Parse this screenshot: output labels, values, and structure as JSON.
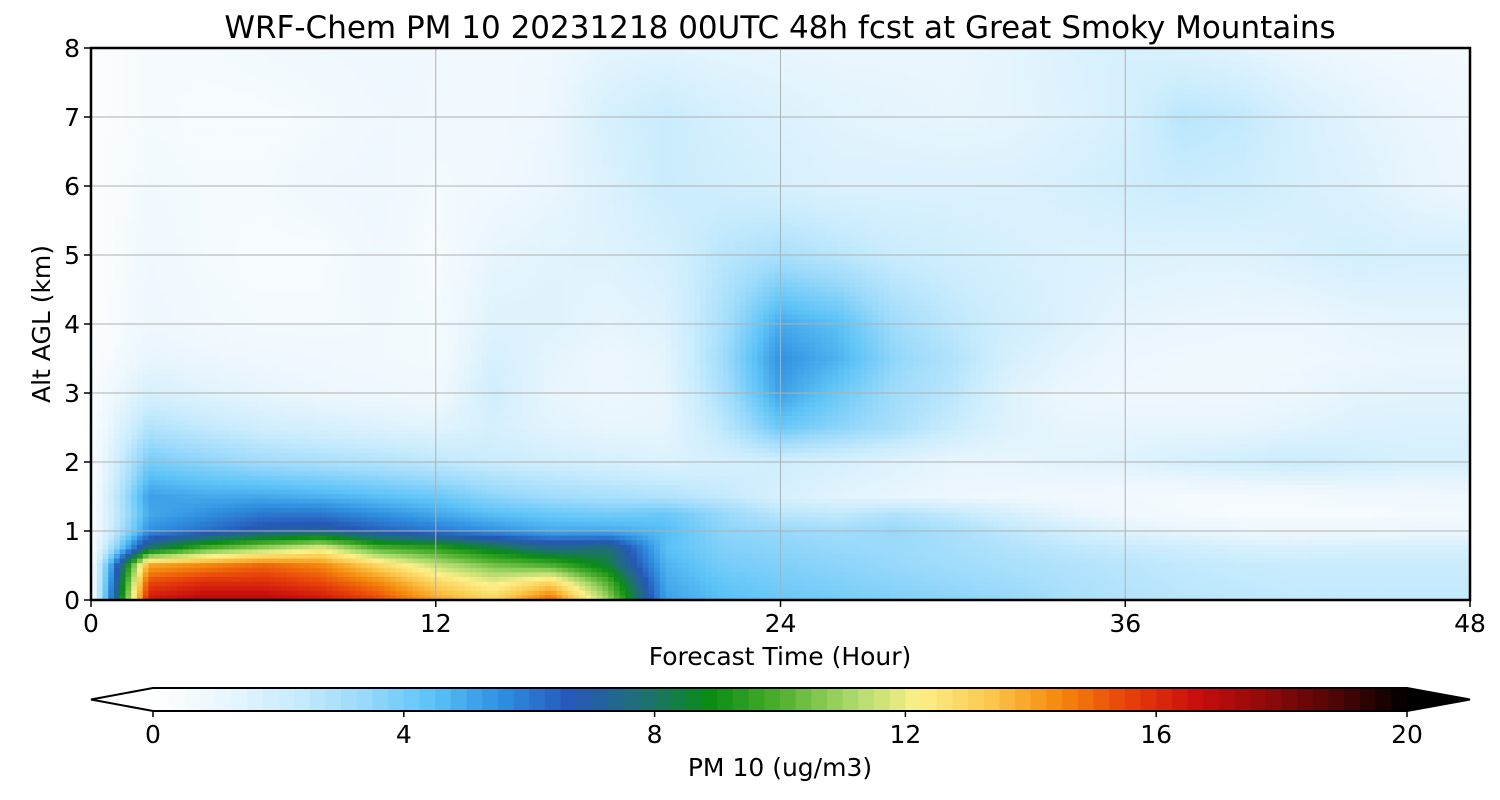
{
  "chart_data": {
    "type": "heatmap",
    "title": "WRF-Chem PM 10  20231218 00UTC 48h fcst at Great Smoky Mountains",
    "xlabel": "Forecast Time (Hour)",
    "ylabel": "Alt AGL (km)",
    "xlim": [
      0,
      48
    ],
    "ylim": [
      0,
      8
    ],
    "x_ticks": [
      "0",
      "12",
      "24",
      "36",
      "48"
    ],
    "y_ticks": [
      "0",
      "1",
      "2",
      "3",
      "4",
      "5",
      "6",
      "7",
      "8"
    ],
    "grid": true,
    "x": [
      0,
      2,
      4,
      6,
      8,
      10,
      12,
      14,
      16,
      18,
      20,
      22,
      24,
      26,
      28,
      30,
      32,
      34,
      36,
      38,
      40,
      42,
      44,
      46,
      48
    ],
    "y": [
      0,
      0.25,
      0.5,
      0.75,
      1,
      1.25,
      1.5,
      2,
      2.5,
      3,
      3.5,
      4,
      5,
      6,
      7,
      8
    ],
    "z": [
      [
        0.3,
        16.5,
        17,
        17,
        16.5,
        15.5,
        14,
        13,
        15,
        11,
        5.2,
        4.5,
        4.2,
        4.0,
        3.8,
        3.6,
        3.4,
        3.0,
        2.8,
        2.6,
        2.5,
        2.4,
        2.4,
        2.4,
        2.4
      ],
      [
        0.3,
        15.5,
        16,
        16,
        15.5,
        14.5,
        13,
        12,
        13,
        10,
        5.0,
        4.3,
        4.0,
        3.8,
        3.6,
        3.4,
        3.2,
        2.9,
        2.7,
        2.5,
        2.4,
        2.3,
        2.3,
        2.3,
        2.3
      ],
      [
        0.3,
        14,
        14.5,
        15,
        14.5,
        13,
        11.5,
        10.5,
        10,
        8.5,
        4.8,
        4.0,
        3.8,
        3.6,
        3.4,
        3.2,
        3.0,
        2.8,
        2.6,
        2.4,
        2.3,
        2.2,
        2.2,
        2.2,
        2.2
      ],
      [
        0.3,
        8,
        10,
        11,
        12,
        10,
        9.5,
        8.5,
        7.5,
        7.8,
        4.5,
        3.8,
        3.6,
        3.4,
        3.3,
        3.1,
        2.8,
        2.5,
        2.3,
        2.1,
        1.8,
        1.7,
        1.8,
        1.8,
        1.8
      ],
      [
        0.3,
        5.5,
        6.2,
        7.0,
        7.2,
        6.5,
        6.0,
        5.5,
        5.0,
        5.0,
        4.6,
        3.6,
        3.4,
        3.2,
        3.4,
        3.0,
        2.5,
        2.0,
        1.5,
        1.2,
        1.0,
        0.9,
        0.9,
        1.0,
        1.0
      ],
      [
        0.3,
        5.0,
        5.5,
        6.0,
        6.0,
        5.5,
        5.0,
        4.5,
        4.2,
        4.0,
        4.2,
        3.4,
        2.6,
        2.4,
        2.8,
        2.4,
        1.8,
        1.2,
        0.8,
        0.6,
        0.5,
        0.5,
        0.5,
        0.6,
        0.6
      ],
      [
        0.3,
        5.2,
        5.0,
        5.0,
        4.8,
        4.5,
        4.2,
        3.6,
        3.2,
        3.0,
        2.8,
        2.4,
        1.8,
        1.4,
        1.2,
        1.0,
        0.9,
        0.8,
        0.7,
        0.6,
        0.6,
        0.6,
        0.8,
        0.8,
        0.9
      ],
      [
        0.3,
        4.0,
        3.6,
        3.2,
        3.0,
        2.8,
        2.5,
        2.2,
        2.0,
        1.8,
        1.6,
        1.8,
        2.0,
        1.8,
        1.5,
        1.2,
        1.2,
        1.4,
        1.5,
        1.8,
        2.0,
        2.2,
        2.0,
        1.8,
        1.8
      ],
      [
        0.3,
        2.8,
        2.4,
        2.0,
        1.8,
        1.6,
        1.4,
        1.8,
        1.4,
        1.2,
        1.2,
        2.5,
        4.2,
        3.6,
        3.0,
        2.2,
        1.5,
        1.2,
        1.2,
        1.2,
        1.2,
        1.4,
        1.6,
        1.6,
        1.6
      ],
      [
        0.3,
        1.8,
        1.5,
        1.2,
        1.0,
        0.9,
        0.8,
        2.0,
        1.2,
        1.0,
        1.2,
        3.0,
        5.2,
        4.2,
        3.2,
        2.6,
        1.5,
        1.0,
        0.9,
        0.9,
        0.9,
        1.0,
        1.3,
        1.4,
        1.4
      ],
      [
        0.2,
        1.2,
        1.0,
        0.9,
        0.8,
        0.7,
        0.6,
        1.8,
        1.3,
        1.0,
        1.3,
        3.2,
        5.5,
        4.8,
        3.5,
        2.8,
        1.8,
        1.3,
        1.0,
        0.9,
        0.9,
        0.9,
        1.0,
        1.1,
        1.1
      ],
      [
        0.2,
        0.9,
        0.7,
        0.6,
        0.6,
        0.7,
        0.6,
        1.5,
        1.5,
        1.2,
        1.5,
        3.0,
        5.0,
        4.5,
        3.2,
        2.5,
        2.0,
        1.6,
        1.2,
        1.1,
        1.0,
        1.0,
        1.2,
        1.3,
        1.3
      ],
      [
        0.2,
        0.8,
        0.6,
        0.5,
        0.5,
        0.8,
        0.5,
        1.2,
        1.4,
        1.5,
        1.8,
        2.6,
        3.0,
        2.6,
        2.2,
        2.0,
        1.8,
        1.6,
        1.6,
        1.5,
        1.5,
        1.7,
        1.9,
        1.8,
        1.8
      ],
      [
        0.2,
        0.7,
        0.6,
        0.6,
        0.8,
        0.9,
        0.6,
        0.8,
        1.1,
        1.6,
        2.2,
        2.0,
        1.8,
        1.6,
        1.6,
        1.6,
        1.6,
        1.8,
        2.0,
        2.2,
        2.1,
        1.8,
        1.6,
        1.2,
        1.0
      ],
      [
        0.2,
        0.6,
        0.5,
        0.5,
        0.6,
        0.8,
        0.8,
        0.7,
        1.0,
        1.8,
        2.2,
        1.8,
        1.6,
        1.4,
        1.3,
        1.2,
        1.3,
        1.5,
        1.8,
        2.6,
        2.4,
        1.8,
        1.4,
        1.1,
        0.9
      ],
      [
        0.2,
        0.6,
        0.6,
        0.7,
        0.8,
        0.9,
        0.8,
        0.7,
        0.9,
        1.3,
        1.4,
        1.3,
        1.2,
        1.1,
        1.1,
        1.1,
        1.3,
        1.6,
        1.8,
        1.6,
        1.4,
        1.1,
        0.9,
        0.7,
        0.6
      ]
    ],
    "colorbar": {
      "label": "PM 10  (ug/m3)",
      "min": 0,
      "max": 20,
      "ticks": [
        "0",
        "4",
        "8",
        "12",
        "16",
        "20"
      ],
      "extend": "both",
      "colors": [
        "#ffffff",
        "#eaf6fd",
        "#c9ecfd",
        "#9bdafb",
        "#5cc3f7",
        "#2f8fe0",
        "#2658b8",
        "#1f6f78",
        "#0a8c14",
        "#4fb02f",
        "#a8d86a",
        "#fdf08a",
        "#fbc84c",
        "#f58a0c",
        "#e8410a",
        "#c80d0d",
        "#8e0a0a",
        "#4c0505",
        "#000000"
      ]
    }
  }
}
